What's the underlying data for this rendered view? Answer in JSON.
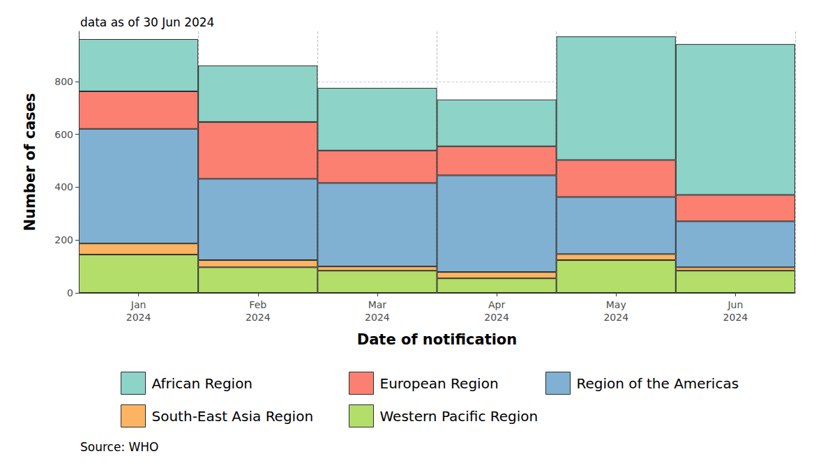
{
  "chart_data": {
    "type": "bar",
    "title": "data as of 30 Jun 2024",
    "x_label": "Date of notification",
    "y_label": "Number of cases",
    "caption": "Source: WHO",
    "categories": [
      "Jan 2024",
      "Feb 2024",
      "Mar 2024",
      "Apr 2024",
      "May 2024",
      "Jun 2024"
    ],
    "series": [
      {
        "name": "African Region",
        "color": "#8dd3c7",
        "values": [
          198,
          214,
          237,
          177,
          468,
          571
        ]
      },
      {
        "name": "European Region",
        "color": "#fb8072",
        "values": [
          142,
          215,
          123,
          110,
          140,
          100
        ]
      },
      {
        "name": "Region of the Americas",
        "color": "#80b1d3",
        "values": [
          434,
          308,
          316,
          366,
          216,
          174
        ]
      },
      {
        "name": "South-East Asia Region",
        "color": "#fdb462",
        "values": [
          42,
          27,
          16,
          24,
          23,
          13
        ]
      },
      {
        "name": "Western Pacific Region",
        "color": "#b3de69",
        "values": [
          145,
          97,
          84,
          55,
          124,
          84
        ]
      }
    ],
    "ylim": [
      0,
      990
    ],
    "yticks": [
      0,
      200,
      400,
      600,
      800
    ],
    "stacked": true,
    "grid": true,
    "legend": "bottom"
  }
}
